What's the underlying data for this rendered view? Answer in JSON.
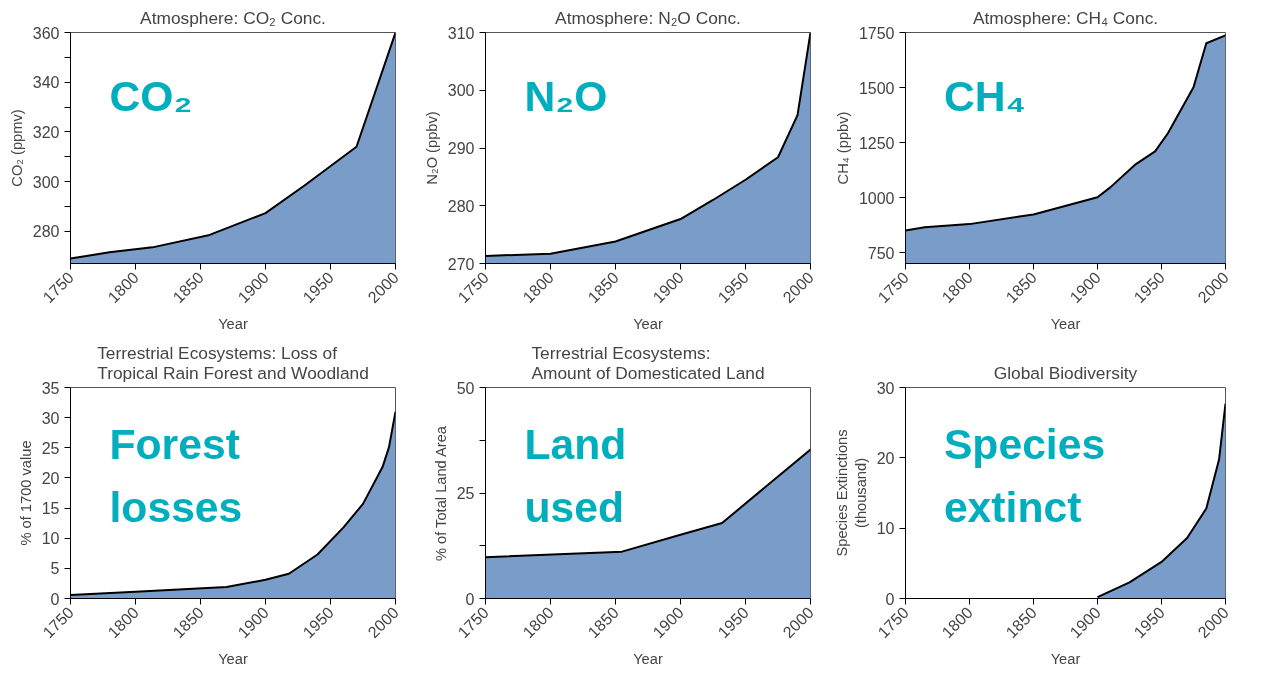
{
  "chart_data": [
    {
      "type": "area",
      "title": "Atmosphere: CO₂ Conc.",
      "xlabel": "Year",
      "ylabel": "CO₂ (ppmv)",
      "annotations": [
        "CO₂"
      ],
      "x": [
        1750,
        1780,
        1813,
        1857,
        1900,
        1930,
        1970,
        2000
      ],
      "series": [
        {
          "color": "#7a9cc8",
          "values": [
            269,
            271.5,
            273.5,
            278.5,
            287.3,
            298.4,
            314,
            360
          ]
        }
      ],
      "xlim": [
        1750,
        2000
      ],
      "xticks": [
        1750,
        1800,
        1850,
        1900,
        1950,
        2000
      ],
      "ylim": [
        267,
        360
      ],
      "yticks": [
        280,
        {
          "value": 290,
          "label": null
        },
        300,
        {
          "value": 310,
          "label": null
        },
        320,
        {
          "value": 330,
          "label": null
        },
        340,
        {
          "value": 350,
          "label": null
        },
        360
      ],
      "grid": false
    },
    {
      "type": "area",
      "title": "Atmosphere: N₂O Conc.",
      "xlabel": "Year",
      "ylabel": "N₂O (ppbv)",
      "annotations": [
        "N₂O"
      ],
      "x": [
        1750,
        1800,
        1850,
        1900,
        1925,
        1950,
        1975,
        1990,
        2000
      ],
      "series": [
        {
          "color": "#7a9cc8",
          "values": [
            271.3,
            271.7,
            273.8,
            277.7,
            281,
            284.5,
            288.4,
            295.7,
            310
          ]
        }
      ],
      "xlim": [
        1750,
        2000
      ],
      "xticks": [
        1750,
        1800,
        1850,
        1900,
        1950,
        2000
      ],
      "ylim": [
        270,
        310
      ],
      "yticks": [
        270,
        280,
        290,
        300,
        310
      ],
      "grid": false
    },
    {
      "type": "area",
      "title": "Atmosphere: CH₄ Conc.",
      "xlabel": "Year",
      "ylabel": "CH₄ (ppbv)",
      "annotations": [
        "CH₄"
      ],
      "x": [
        1750,
        1765,
        1800,
        1850,
        1900,
        1910,
        1930,
        1945,
        1955,
        1975,
        1985,
        2000
      ],
      "series": [
        {
          "color": "#7a9cc8",
          "values": [
            850,
            865,
            879,
            923,
            1001,
            1046,
            1152,
            1210,
            1292,
            1501,
            1701,
            1737
          ]
        }
      ],
      "xlim": [
        1750,
        2000
      ],
      "xticks": [
        1750,
        1800,
        1850,
        1900,
        1950,
        2000
      ],
      "ylim": [
        700,
        1750
      ],
      "yticks": [
        750,
        1000,
        1250,
        1500,
        1750
      ],
      "grid": false
    },
    {
      "type": "area",
      "title": "Terrestrial Ecosystems: Loss of\nTropical Rain Forest and Woodland",
      "xlabel": "Year",
      "ylabel": "% of 1700 value",
      "annotations": [
        "Forest\nlosses"
      ],
      "x": [
        1750,
        1800,
        1870,
        1900,
        1918,
        1940,
        1960,
        1975,
        1990,
        1995,
        2000
      ],
      "series": [
        {
          "color": "#7a9cc8",
          "values": [
            0.6,
            1.1,
            1.9,
            3.1,
            4.1,
            7.3,
            11.8,
            15.7,
            21.8,
            25.1,
            31
          ]
        }
      ],
      "xlim": [
        1750,
        2000
      ],
      "xticks": [
        1750,
        1800,
        1850,
        1900,
        1950,
        2000
      ],
      "ylim": [
        0,
        35
      ],
      "yticks": [
        0,
        5,
        10,
        15,
        20,
        25,
        30,
        35
      ],
      "grid": false
    },
    {
      "type": "area",
      "title": "Terrestrial Ecosystems:\nAmount of Domesticated Land",
      "xlabel": "Year",
      "ylabel": "% of Total Land Area",
      "annotations": [
        "Land\nused"
      ],
      "x": [
        1750,
        1855,
        1900,
        1932,
        2000
      ],
      "series": [
        {
          "color": "#7a9cc8",
          "values": [
            9.8,
            11.1,
            15.1,
            17.9,
            35.3
          ]
        }
      ],
      "xlim": [
        1750,
        2000
      ],
      "xticks": [
        1750,
        1800,
        1850,
        1900,
        1950,
        2000
      ],
      "ylim": [
        0,
        50
      ],
      "yticks": [
        0,
        {
          "value": 12.5,
          "label": null
        },
        25,
        {
          "value": 37.5,
          "label": null
        },
        50
      ],
      "grid": false
    },
    {
      "type": "area",
      "title": "Global Biodiversity",
      "xlabel": "Year",
      "ylabel": "Species Extinctions\n(thousand)",
      "annotations": [
        "Species\nextinct"
      ],
      "x": [
        1900,
        1925,
        1950,
        1970,
        1985,
        1995,
        2000
      ],
      "series": [
        {
          "color": "#7a9cc8",
          "values": [
            0.2,
            2.3,
            5.2,
            8.6,
            12.8,
            19.8,
            27.7
          ]
        }
      ],
      "xlim": [
        1750,
        2000
      ],
      "xticks": [
        1750,
        1800,
        1850,
        1900,
        1950,
        2000
      ],
      "ylim": [
        0,
        30
      ],
      "yticks": [
        0,
        10,
        20,
        30
      ],
      "grid": false
    }
  ]
}
